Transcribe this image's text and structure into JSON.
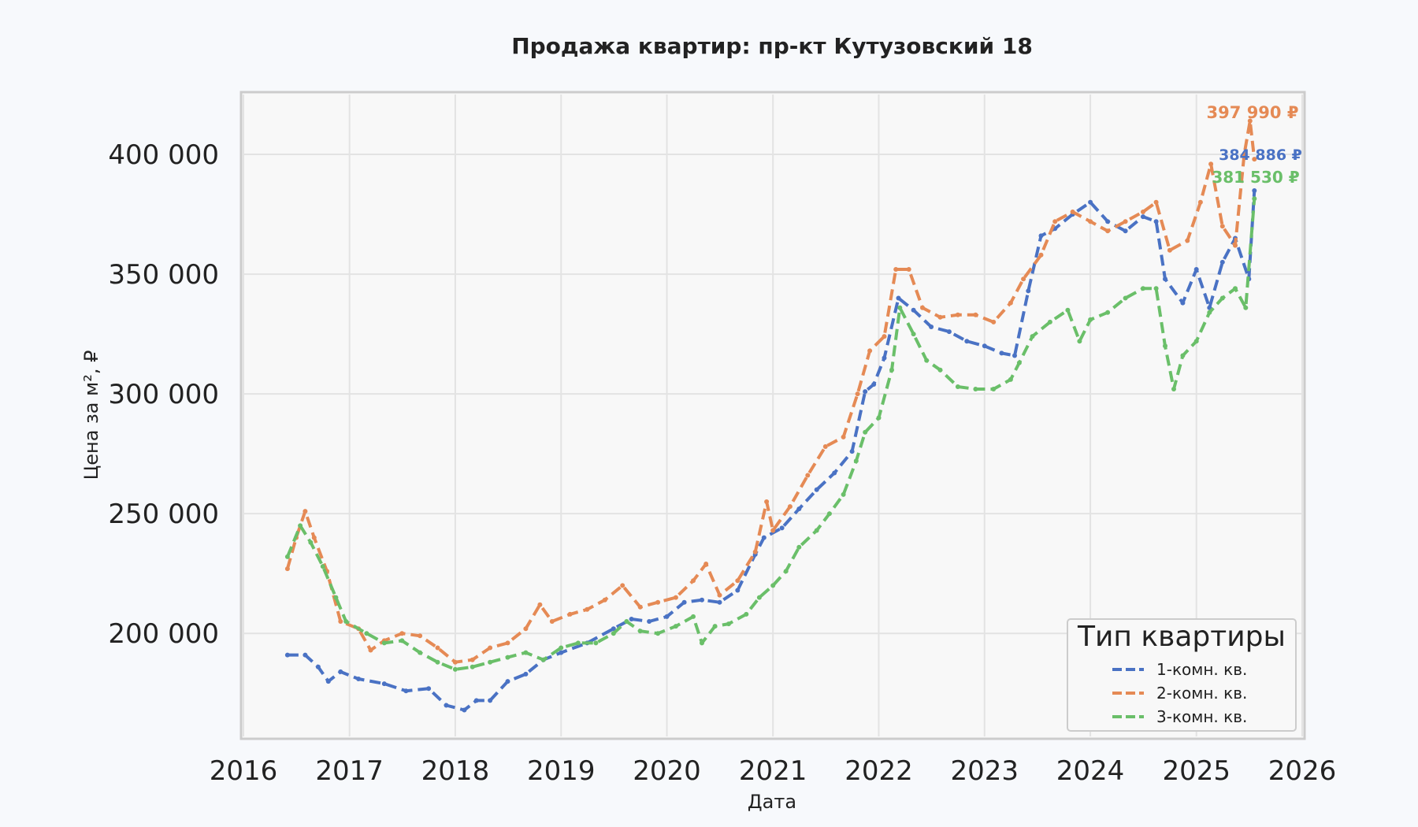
{
  "chart_data": {
    "type": "line",
    "title": "Продажа квартир: пр-кт Кутузовский 18",
    "xlabel": "Дата",
    "ylabel": "Цена за м², ₽",
    "xlim": [
      "2016-01-01",
      "2026-01-01"
    ],
    "ylim": [
      157000,
      425000
    ],
    "x_ticks": [
      "2016",
      "2017",
      "2018",
      "2019",
      "2020",
      "2021",
      "2022",
      "2023",
      "2024",
      "2025",
      "2026"
    ],
    "y_ticks": [
      200000,
      250000,
      300000,
      350000,
      400000
    ],
    "y_tick_labels": [
      "200 000",
      "250 000",
      "300 000",
      "350 000",
      "400 000"
    ],
    "grid": true,
    "legend": {
      "title": "Тип квартиры",
      "placement": "bottom-right"
    },
    "series": [
      {
        "name": "1-комн. кв.",
        "color": "#4a72c4",
        "end_label": "384 886 ₽",
        "points": [
          [
            "2016-06-01",
            191000
          ],
          [
            "2016-08-01",
            191000
          ],
          [
            "2016-09-15",
            186000
          ],
          [
            "2016-10-20",
            180000
          ],
          [
            "2016-12-01",
            184000
          ],
          [
            "2017-02-01",
            181000
          ],
          [
            "2017-05-01",
            179000
          ],
          [
            "2017-07-15",
            176000
          ],
          [
            "2017-10-01",
            177000
          ],
          [
            "2017-12-01",
            170000
          ],
          [
            "2018-02-01",
            168000
          ],
          [
            "2018-03-15",
            172000
          ],
          [
            "2018-05-01",
            172000
          ],
          [
            "2018-07-01",
            180000
          ],
          [
            "2018-09-01",
            183000
          ],
          [
            "2018-11-01",
            189000
          ],
          [
            "2019-01-01",
            192000
          ],
          [
            "2019-04-01",
            196000
          ],
          [
            "2019-07-01",
            202000
          ],
          [
            "2019-09-01",
            206000
          ],
          [
            "2019-11-01",
            205000
          ],
          [
            "2020-01-01",
            207000
          ],
          [
            "2020-03-01",
            213000
          ],
          [
            "2020-05-01",
            214000
          ],
          [
            "2020-07-01",
            213000
          ],
          [
            "2020-09-01",
            218000
          ],
          [
            "2020-11-01",
            233000
          ],
          [
            "2020-12-01",
            240000
          ],
          [
            "2021-02-01",
            244000
          ],
          [
            "2021-04-01",
            252000
          ],
          [
            "2021-06-01",
            260000
          ],
          [
            "2021-08-01",
            267000
          ],
          [
            "2021-10-01",
            276000
          ],
          [
            "2021-11-15",
            301000
          ],
          [
            "2021-12-15",
            304000
          ],
          [
            "2022-01-20",
            315000
          ],
          [
            "2022-03-10",
            340000
          ],
          [
            "2022-05-01",
            335000
          ],
          [
            "2022-07-01",
            328000
          ],
          [
            "2022-09-01",
            326000
          ],
          [
            "2022-11-01",
            322000
          ],
          [
            "2023-01-01",
            320000
          ],
          [
            "2023-03-01",
            317000
          ],
          [
            "2023-04-15",
            316000
          ],
          [
            "2023-06-01",
            343000
          ],
          [
            "2023-07-15",
            366000
          ],
          [
            "2023-09-01",
            369000
          ],
          [
            "2023-11-01",
            375000
          ],
          [
            "2024-01-01",
            380000
          ],
          [
            "2024-03-01",
            372000
          ],
          [
            "2024-05-01",
            368000
          ],
          [
            "2024-07-01",
            374000
          ],
          [
            "2024-08-15",
            372000
          ],
          [
            "2024-09-15",
            348000
          ],
          [
            "2024-11-15",
            338000
          ],
          [
            "2025-01-01",
            352000
          ],
          [
            "2025-02-15",
            336000
          ],
          [
            "2025-04-01",
            355000
          ],
          [
            "2025-05-15",
            365000
          ],
          [
            "2025-07-01",
            348000
          ],
          [
            "2025-07-20",
            384886
          ]
        ]
      },
      {
        "name": "2-комн. кв.",
        "color": "#e58a55",
        "end_label": "397 990 ₽",
        "points": [
          [
            "2016-06-01",
            227000
          ],
          [
            "2016-07-01",
            240000
          ],
          [
            "2016-08-01",
            251000
          ],
          [
            "2016-09-01",
            240000
          ],
          [
            "2016-10-15",
            226000
          ],
          [
            "2016-12-01",
            205000
          ],
          [
            "2017-02-01",
            202000
          ],
          [
            "2017-03-15",
            193000
          ],
          [
            "2017-05-01",
            197000
          ],
          [
            "2017-07-01",
            200000
          ],
          [
            "2017-09-01",
            199000
          ],
          [
            "2017-11-01",
            194000
          ],
          [
            "2018-01-01",
            188000
          ],
          [
            "2018-03-01",
            189000
          ],
          [
            "2018-05-01",
            194000
          ],
          [
            "2018-07-01",
            196000
          ],
          [
            "2018-09-01",
            202000
          ],
          [
            "2018-10-20",
            212000
          ],
          [
            "2018-12-01",
            205000
          ],
          [
            "2019-02-01",
            208000
          ],
          [
            "2019-04-01",
            210000
          ],
          [
            "2019-06-01",
            214000
          ],
          [
            "2019-08-01",
            220000
          ],
          [
            "2019-10-01",
            211000
          ],
          [
            "2019-12-01",
            213000
          ],
          [
            "2020-02-01",
            215000
          ],
          [
            "2020-04-01",
            222000
          ],
          [
            "2020-05-15",
            229000
          ],
          [
            "2020-07-01",
            216000
          ],
          [
            "2020-09-01",
            222000
          ],
          [
            "2020-11-01",
            234000
          ],
          [
            "2020-12-10",
            255000
          ],
          [
            "2021-01-01",
            243000
          ],
          [
            "2021-03-01",
            253000
          ],
          [
            "2021-05-01",
            266000
          ],
          [
            "2021-07-01",
            278000
          ],
          [
            "2021-09-01",
            282000
          ],
          [
            "2021-10-20",
            300000
          ],
          [
            "2021-12-01",
            318000
          ],
          [
            "2022-01-20",
            324000
          ],
          [
            "2022-03-01",
            352000
          ],
          [
            "2022-04-15",
            352000
          ],
          [
            "2022-06-01",
            336000
          ],
          [
            "2022-08-01",
            332000
          ],
          [
            "2022-10-01",
            333000
          ],
          [
            "2022-12-01",
            333000
          ],
          [
            "2023-02-01",
            330000
          ],
          [
            "2023-04-01",
            338000
          ],
          [
            "2023-05-15",
            348000
          ],
          [
            "2023-07-15",
            358000
          ],
          [
            "2023-09-01",
            372000
          ],
          [
            "2023-11-01",
            376000
          ],
          [
            "2024-01-01",
            372000
          ],
          [
            "2024-03-01",
            368000
          ],
          [
            "2024-05-01",
            372000
          ],
          [
            "2024-07-01",
            376000
          ],
          [
            "2024-08-15",
            380000
          ],
          [
            "2024-10-01",
            360000
          ],
          [
            "2024-12-01",
            364000
          ],
          [
            "2025-01-15",
            380000
          ],
          [
            "2025-02-20",
            396000
          ],
          [
            "2025-04-01",
            370000
          ],
          [
            "2025-05-15",
            362000
          ],
          [
            "2025-06-15",
            400000
          ],
          [
            "2025-07-05",
            414000
          ],
          [
            "2025-07-20",
            397990
          ]
        ]
      },
      {
        "name": "3-комн. кв.",
        "color": "#6abf69",
        "end_label": "381 530 ₽",
        "points": [
          [
            "2016-06-01",
            232000
          ],
          [
            "2016-07-15",
            245000
          ],
          [
            "2016-08-20",
            238000
          ],
          [
            "2016-10-01",
            228000
          ],
          [
            "2016-11-15",
            215000
          ],
          [
            "2016-12-20",
            205000
          ],
          [
            "2017-03-01",
            200000
          ],
          [
            "2017-05-01",
            196000
          ],
          [
            "2017-07-01",
            197000
          ],
          [
            "2017-09-01",
            192000
          ],
          [
            "2017-11-01",
            188000
          ],
          [
            "2018-01-01",
            185000
          ],
          [
            "2018-03-01",
            186000
          ],
          [
            "2018-05-01",
            188000
          ],
          [
            "2018-07-01",
            190000
          ],
          [
            "2018-09-01",
            192000
          ],
          [
            "2018-11-01",
            189000
          ],
          [
            "2019-01-01",
            194000
          ],
          [
            "2019-03-01",
            196000
          ],
          [
            "2019-05-01",
            196000
          ],
          [
            "2019-07-01",
            200000
          ],
          [
            "2019-08-15",
            205000
          ],
          [
            "2019-10-01",
            201000
          ],
          [
            "2019-12-01",
            200000
          ],
          [
            "2020-02-01",
            203000
          ],
          [
            "2020-04-01",
            207000
          ],
          [
            "2020-05-01",
            196000
          ],
          [
            "2020-06-15",
            203000
          ],
          [
            "2020-08-01",
            204000
          ],
          [
            "2020-10-01",
            208000
          ],
          [
            "2020-11-15",
            215000
          ],
          [
            "2021-01-01",
            220000
          ],
          [
            "2021-02-15",
            226000
          ],
          [
            "2021-04-01",
            236000
          ],
          [
            "2021-06-01",
            243000
          ],
          [
            "2021-07-15",
            250000
          ],
          [
            "2021-09-01",
            258000
          ],
          [
            "2021-10-15",
            272000
          ],
          [
            "2021-11-15",
            284000
          ],
          [
            "2022-01-01",
            290000
          ],
          [
            "2022-02-15",
            310000
          ],
          [
            "2022-03-15",
            336000
          ],
          [
            "2022-05-01",
            325000
          ],
          [
            "2022-06-15",
            314000
          ],
          [
            "2022-08-01",
            310000
          ],
          [
            "2022-10-01",
            303000
          ],
          [
            "2022-12-01",
            302000
          ],
          [
            "2023-02-01",
            302000
          ],
          [
            "2023-04-01",
            306000
          ],
          [
            "2023-05-01",
            313000
          ],
          [
            "2023-06-15",
            324000
          ],
          [
            "2023-08-15",
            330000
          ],
          [
            "2023-10-15",
            335000
          ],
          [
            "2023-11-25",
            322000
          ],
          [
            "2024-01-01",
            331000
          ],
          [
            "2024-03-01",
            334000
          ],
          [
            "2024-05-01",
            340000
          ],
          [
            "2024-07-01",
            344000
          ],
          [
            "2024-08-15",
            344000
          ],
          [
            "2024-09-15",
            320000
          ],
          [
            "2024-10-15",
            302000
          ],
          [
            "2024-11-15",
            316000
          ],
          [
            "2025-01-01",
            322000
          ],
          [
            "2025-02-15",
            334000
          ],
          [
            "2025-04-01",
            340000
          ],
          [
            "2025-05-15",
            344000
          ],
          [
            "2025-06-20",
            336000
          ],
          [
            "2025-07-20",
            381530
          ]
        ]
      }
    ]
  }
}
